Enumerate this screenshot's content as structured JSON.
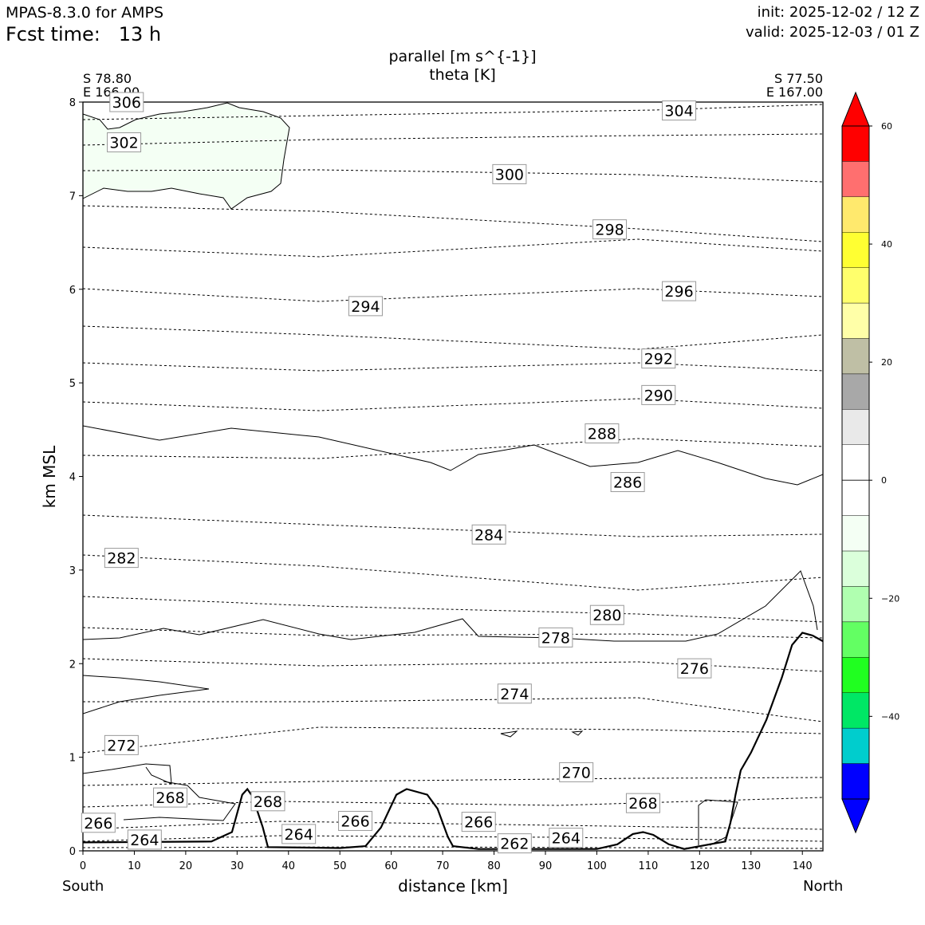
{
  "header": {
    "model": "MPAS-8.3.0 for AMPS",
    "fcst_label": "Fcst time:",
    "fcst_value": "13 h",
    "init": "init: 2025-12-02 / 12 Z",
    "valid": "valid: 2025-12-03 / 01 Z"
  },
  "endpoints": {
    "left_lat": "S 78.80",
    "left_lon": "E 166.00",
    "right_lat": "S 77.50",
    "right_lon": "E 167.00",
    "left_name": "South",
    "right_name": "North"
  },
  "chart_data": {
    "type": "contour",
    "title_line1": "parallel [m s^{-1}]",
    "title_line2": "theta [K]",
    "xlabel": "distance [km]",
    "ylabel": "km MSL",
    "xlim": [
      0,
      144
    ],
    "ylim": [
      0,
      8
    ],
    "xticks": [
      0,
      10,
      20,
      30,
      40,
      50,
      60,
      70,
      80,
      90,
      100,
      110,
      120,
      130,
      140
    ],
    "yticks": [
      0,
      1,
      2,
      3,
      4,
      5,
      6,
      7,
      8
    ],
    "terrain_km": [
      [
        0,
        0.09
      ],
      [
        25,
        0.1
      ],
      [
        29,
        0.2
      ],
      [
        31,
        0.6
      ],
      [
        32,
        0.66
      ],
      [
        33,
        0.58
      ],
      [
        35,
        0.25
      ],
      [
        36,
        0.04
      ],
      [
        50,
        0.03
      ],
      [
        55,
        0.05
      ],
      [
        58,
        0.25
      ],
      [
        61,
        0.6
      ],
      [
        63,
        0.66
      ],
      [
        67,
        0.6
      ],
      [
        69,
        0.45
      ],
      [
        71,
        0.15
      ],
      [
        72,
        0.05
      ],
      [
        77,
        0.02
      ],
      [
        100,
        0.02
      ],
      [
        104,
        0.07
      ],
      [
        107,
        0.18
      ],
      [
        109,
        0.2
      ],
      [
        111,
        0.17
      ],
      [
        114,
        0.07
      ],
      [
        117,
        0.02
      ],
      [
        125,
        0.1
      ],
      [
        126,
        0.3
      ],
      [
        127,
        0.6
      ],
      [
        128,
        0.86
      ],
      [
        130,
        1.05
      ],
      [
        133,
        1.4
      ],
      [
        136,
        1.85
      ],
      [
        138,
        2.2
      ],
      [
        140,
        2.33
      ],
      [
        142,
        2.3
      ],
      [
        144,
        2.24
      ]
    ],
    "theta_labels": [
      {
        "value": "306",
        "x": 8.5,
        "y": 8.0
      },
      {
        "value": "304",
        "x": 116,
        "y": 7.91
      },
      {
        "value": "302",
        "x": 8,
        "y": 7.57
      },
      {
        "value": "300",
        "x": 83,
        "y": 7.23
      },
      {
        "value": "298",
        "x": 102.5,
        "y": 6.64
      },
      {
        "value": "296",
        "x": 116,
        "y": 5.98
      },
      {
        "value": "294",
        "x": 55,
        "y": 5.82
      },
      {
        "value": "292",
        "x": 112,
        "y": 5.26
      },
      {
        "value": "290",
        "x": 112,
        "y": 4.87
      },
      {
        "value": "288",
        "x": 101,
        "y": 4.46
      },
      {
        "value": "286",
        "x": 106,
        "y": 3.94
      },
      {
        "value": "284",
        "x": 79,
        "y": 3.38
      },
      {
        "value": "282",
        "x": 7.5,
        "y": 3.13
      },
      {
        "value": "280",
        "x": 102,
        "y": 2.52
      },
      {
        "value": "278",
        "x": 92,
        "y": 2.28
      },
      {
        "value": "276",
        "x": 119,
        "y": 1.95
      },
      {
        "value": "274",
        "x": 84,
        "y": 1.68
      },
      {
        "value": "272",
        "x": 7.5,
        "y": 1.13
      },
      {
        "value": "270",
        "x": 96,
        "y": 0.84
      },
      {
        "value": "268",
        "x": 17,
        "y": 0.57
      },
      {
        "value": "268",
        "x": 36,
        "y": 0.53
      },
      {
        "value": "268",
        "x": 109,
        "y": 0.51
      },
      {
        "value": "266",
        "x": 3,
        "y": 0.3
      },
      {
        "value": "266",
        "x": 53,
        "y": 0.32
      },
      {
        "value": "266",
        "x": 77,
        "y": 0.31
      },
      {
        "value": "264",
        "x": 12,
        "y": 0.12
      },
      {
        "value": "264",
        "x": 42,
        "y": 0.18
      },
      {
        "value": "264",
        "x": 94,
        "y": 0.14
      },
      {
        "value": "262",
        "x": 84,
        "y": 0.08
      }
    ],
    "colorbar": {
      "ticks": [
        "60",
        "40",
        "20",
        "0",
        "−20",
        "−40"
      ],
      "tick_values": [
        60,
        40,
        20,
        0,
        -20,
        -40
      ],
      "range": [
        -54,
        60
      ],
      "bins_top_to_bottom": [
        "#ff0000",
        "#ff6f6f",
        "#ffe96d",
        "#ffff32",
        "#ffff6c",
        "#ffffa8",
        "#bfbfa5",
        "#a8a8a8",
        "#e9e9e9",
        "#ffffff",
        "#ffffff",
        "#f4fff4",
        "#dbffdb",
        "#b0ffb0",
        "#63ff63",
        "#20ff20",
        "#00e765",
        "#00cdcd",
        "#0000ff"
      ],
      "extend_top_color": "#ff0000",
      "extend_bottom_color": "#0000ff"
    },
    "shaded_region_color": "#f4fff4",
    "grid": false
  }
}
